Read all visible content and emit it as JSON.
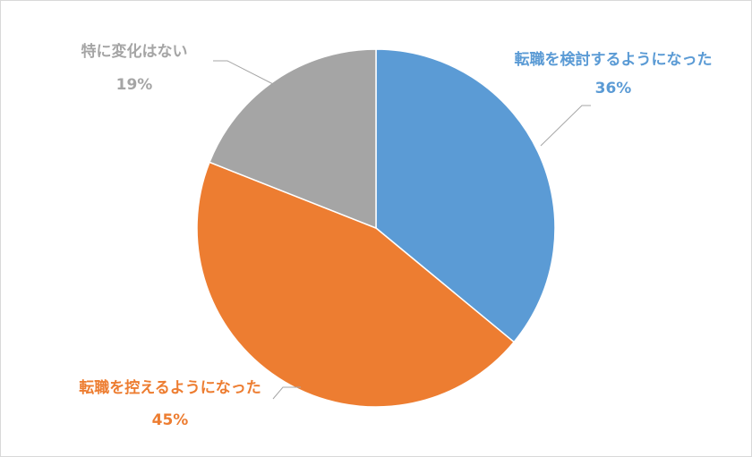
{
  "chart_data": {
    "type": "pie",
    "title": "",
    "start_angle_deg": 0,
    "direction": "clockwise",
    "slices": [
      {
        "label": "転職を検討するようになった",
        "value": 36,
        "value_label": "36%",
        "color": "#5b9bd5"
      },
      {
        "label": "転職を控えるようになった",
        "value": 45,
        "value_label": "45%",
        "color": "#ed7d31"
      },
      {
        "label": "特に変化はない",
        "value": 19,
        "value_label": "19%",
        "color": "#a5a5a5"
      }
    ],
    "legend": "none",
    "data_labels": "outside-with-leader-lines"
  }
}
